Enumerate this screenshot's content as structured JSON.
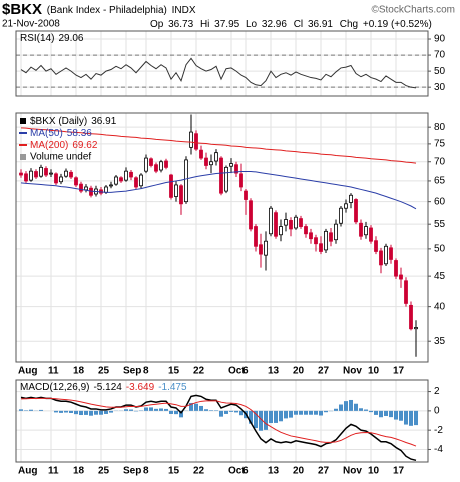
{
  "header": {
    "symbol": "$BKX",
    "name": "(Bank Index - Philadelphia)",
    "exchange": "INDX",
    "date": "21-Nov-2008",
    "copyright": "©StockCharts.com",
    "open_label": "Op",
    "high_label": "Hi",
    "low_label": "Lo",
    "close_label": "Cl",
    "change_label": "Chg",
    "change": "+0.19 (+0.52%)"
  },
  "chart_data": [
    {
      "type": "line",
      "title": "RSI(14)",
      "series": [
        {
          "color": "#333333",
          "values": [
            52,
            48,
            55,
            51,
            57,
            50,
            53,
            46,
            50,
            54,
            50,
            45,
            42,
            46,
            40,
            47,
            45,
            50,
            52,
            56,
            53,
            58,
            54,
            48,
            55,
            62,
            57,
            53,
            58,
            54,
            40,
            48,
            38,
            58,
            66,
            57,
            53,
            50,
            52,
            56,
            40,
            53,
            54,
            50,
            45,
            42,
            36,
            33,
            32,
            38,
            50,
            42,
            46,
            48,
            45,
            49,
            46,
            44,
            42,
            41,
            39,
            46,
            43,
            49,
            54,
            55,
            57,
            47,
            43,
            46,
            42,
            40,
            37,
            44,
            40,
            36,
            36,
            32,
            30,
            29.06
          ]
        }
      ],
      "ylim": [
        19,
        100
      ],
      "yticks": [
        90,
        70,
        50,
        30
      ],
      "dashed_lines": [
        70,
        30
      ],
      "grid": true
    },
    {
      "type": "candlestick",
      "log_scale": true,
      "grid": true,
      "categories": [
        "Aug",
        null,
        null,
        null,
        null,
        null,
        "11",
        null,
        null,
        null,
        null,
        "18",
        null,
        null,
        null,
        null,
        "25",
        null,
        null,
        null,
        null,
        "Sep",
        null,
        null,
        null,
        "8",
        null,
        null,
        null,
        null,
        "15",
        null,
        null,
        null,
        null,
        "22",
        null,
        null,
        null,
        null,
        null,
        null,
        "Oct",
        null,
        null,
        "6",
        null,
        null,
        null,
        null,
        "13",
        null,
        null,
        null,
        null,
        "20",
        null,
        null,
        null,
        null,
        "27",
        null,
        null,
        null,
        null,
        "Nov",
        null,
        null,
        null,
        null,
        "10",
        null,
        null,
        null,
        null,
        "17",
        null,
        null,
        null,
        null
      ],
      "series": [
        {
          "name": "$BKX (Daily)",
          "color": "#000000",
          "up_color": "#000000",
          "down_color": "#cc0033",
          "open": [
            67.0,
            66.8,
            65.2,
            67.4,
            66.2,
            68.2,
            66.8,
            66.8,
            64.8,
            66.2,
            67.2,
            65.8,
            64.2,
            62.8,
            63.2,
            61.8,
            62.8,
            62.2,
            63.8,
            64.2,
            65.8,
            65.2,
            67.2,
            65.8,
            63.8,
            67.5,
            70.8,
            69.2,
            67.8,
            70.2,
            66.5,
            61.2,
            63.8,
            60.0,
            74.0,
            78.0,
            73.2,
            71.0,
            69.2,
            70.2,
            71.0,
            62.5,
            68.8,
            69.2,
            66.8,
            62.5,
            60.2,
            54.5,
            50.8,
            48.8,
            53.0,
            57.5,
            52.8,
            54.8,
            55.8,
            54.2,
            56.2,
            54.5,
            53.2,
            52.2,
            51.0,
            49.8,
            53.2,
            51.8,
            55.2,
            58.5,
            59.8,
            60.5,
            55.2,
            52.8,
            54.2,
            51.6,
            49.6,
            47.2,
            50.2,
            47.8,
            45.2,
            44.2,
            40.2,
            36.73
          ],
          "high": [
            68.0,
            67.5,
            68.3,
            68.0,
            69.2,
            68.8,
            68.0,
            67.2,
            66.8,
            68.2,
            67.8,
            66.2,
            64.8,
            64.2,
            63.8,
            63.8,
            63.5,
            64.0,
            64.8,
            66.5,
            66.2,
            68.5,
            67.8,
            66.2,
            67.0,
            72.0,
            71.2,
            69.8,
            70.5,
            70.8,
            66.8,
            65.0,
            64.2,
            71.5,
            84.0,
            79.0,
            74.5,
            72.5,
            72.0,
            73.5,
            71.5,
            69.0,
            71.0,
            70.0,
            69.5,
            63.0,
            60.8,
            55.0,
            53.0,
            53.5,
            59.0,
            58.0,
            56.0,
            57.5,
            56.5,
            57.0,
            56.8,
            55.0,
            54.0,
            52.8,
            52.5,
            54.0,
            54.2,
            56.0,
            59.0,
            60.5,
            62.0,
            60.8,
            56.0,
            55.5,
            54.8,
            52.5,
            50.2,
            51.0,
            50.8,
            48.2,
            46.5,
            44.8,
            40.8,
            37.95
          ],
          "low": [
            65.8,
            64.5,
            64.8,
            65.5,
            65.8,
            66.0,
            66.0,
            64.0,
            64.2,
            65.8,
            65.5,
            63.5,
            62.0,
            62.2,
            61.0,
            61.2,
            61.5,
            61.8,
            63.2,
            63.8,
            64.5,
            64.8,
            65.2,
            63.0,
            63.2,
            67.0,
            68.5,
            67.0,
            67.2,
            68.0,
            60.5,
            60.0,
            57.0,
            59.5,
            72.0,
            73.0,
            70.5,
            68.0,
            67.0,
            69.0,
            61.5,
            62.0,
            67.0,
            66.0,
            62.5,
            57.0,
            53.5,
            49.5,
            46.5,
            46.0,
            52.5,
            52.0,
            51.5,
            53.5,
            52.5,
            53.8,
            54.0,
            52.2,
            51.0,
            49.5,
            49.0,
            49.2,
            50.5,
            51.0,
            54.5,
            57.5,
            58.5,
            55.0,
            51.8,
            52.0,
            51.0,
            49.0,
            45.5,
            46.8,
            47.2,
            44.5,
            43.0,
            40.0,
            36.5,
            32.96
          ],
          "close": [
            66.5,
            65.0,
            67.5,
            66.0,
            68.5,
            66.5,
            67.0,
            64.5,
            66.0,
            67.5,
            66.0,
            64.0,
            62.5,
            63.5,
            61.5,
            63.0,
            62.0,
            63.5,
            64.0,
            66.0,
            65.0,
            67.5,
            66.0,
            63.5,
            66.5,
            71.0,
            69.0,
            67.5,
            70.0,
            68.5,
            61.0,
            64.0,
            59.5,
            70.5,
            78.5,
            73.5,
            71.0,
            69.0,
            70.0,
            72.5,
            62.0,
            68.5,
            69.5,
            67.0,
            63.5,
            60.5,
            54.0,
            50.5,
            49.0,
            51.5,
            58.5,
            52.5,
            54.5,
            56.0,
            54.0,
            56.5,
            54.5,
            53.0,
            52.0,
            51.0,
            49.5,
            53.5,
            51.5,
            55.0,
            58.5,
            59.5,
            61.5,
            55.5,
            52.5,
            54.5,
            51.5,
            49.5,
            47.0,
            50.5,
            48.0,
            45.0,
            44.5,
            40.5,
            36.72,
            36.91
          ]
        },
        {
          "name": "MA(50)",
          "color": "#2b3ea8",
          "values": [
            64.5,
            64.4,
            64.3,
            64.2,
            64.1,
            64.0,
            63.9,
            63.8,
            63.6,
            63.5,
            63.3,
            63.1,
            62.9,
            62.7,
            62.5,
            62.4,
            62.3,
            62.2,
            62.2,
            62.3,
            62.4,
            62.5,
            62.7,
            62.9,
            63.1,
            63.4,
            63.7,
            64.0,
            64.3,
            64.6,
            64.8,
            65.0,
            65.2,
            65.5,
            65.8,
            66.1,
            66.3,
            66.5,
            66.7,
            66.9,
            67.0,
            67.1,
            67.2,
            67.3,
            67.4,
            67.4,
            67.4,
            67.3,
            67.1,
            66.9,
            66.7,
            66.5,
            66.3,
            66.1,
            65.9,
            65.7,
            65.5,
            65.3,
            65.1,
            64.9,
            64.7,
            64.5,
            64.3,
            64.1,
            63.9,
            63.7,
            63.5,
            63.2,
            62.9,
            62.6,
            62.3,
            62.0,
            61.6,
            61.2,
            60.8,
            60.4,
            60.0,
            59.5,
            59.0,
            58.36
          ]
        },
        {
          "name": "MA(200)",
          "color": "#e02020",
          "values": [
            79.8,
            79.7,
            79.5,
            79.4,
            79.3,
            79.2,
            79.0,
            78.9,
            78.8,
            78.6,
            78.5,
            78.4,
            78.3,
            78.1,
            78.0,
            77.9,
            77.8,
            77.6,
            77.5,
            77.4,
            77.2,
            77.1,
            77.0,
            76.9,
            76.7,
            76.6,
            76.5,
            76.3,
            76.2,
            76.1,
            76.0,
            75.8,
            75.7,
            75.6,
            75.5,
            75.3,
            75.2,
            75.1,
            74.9,
            74.8,
            74.7,
            74.6,
            74.4,
            74.3,
            74.2,
            74.0,
            73.9,
            73.8,
            73.7,
            73.5,
            73.4,
            73.3,
            73.2,
            73.0,
            72.9,
            72.8,
            72.6,
            72.5,
            72.4,
            72.3,
            72.1,
            72.0,
            71.9,
            71.7,
            71.6,
            71.5,
            71.4,
            71.2,
            71.1,
            71.0,
            70.8,
            70.7,
            70.6,
            70.5,
            70.3,
            70.2,
            70.1,
            69.9,
            69.8,
            69.62
          ]
        }
      ],
      "note": "Volume undef",
      "note_color": "#999999",
      "ylim": [
        32.3,
        84.5
      ],
      "yticks": [
        80,
        75,
        70,
        65,
        60,
        55,
        50,
        45,
        40,
        35
      ]
    },
    {
      "type": "combo",
      "title": "MACD(12,26,9)",
      "grid": true,
      "categories": [
        "Aug",
        null,
        null,
        null,
        null,
        null,
        "11",
        null,
        null,
        null,
        null,
        "18",
        null,
        null,
        null,
        null,
        "25",
        null,
        null,
        null,
        null,
        "Sep",
        null,
        null,
        null,
        "8",
        null,
        null,
        null,
        null,
        "15",
        null,
        null,
        null,
        null,
        "22",
        null,
        null,
        null,
        null,
        null,
        null,
        "Oct",
        null,
        null,
        "6",
        null,
        null,
        null,
        null,
        "13",
        null,
        null,
        null,
        null,
        "20",
        null,
        null,
        null,
        null,
        "27",
        null,
        null,
        null,
        null,
        "Nov",
        null,
        null,
        null,
        null,
        "10",
        null,
        null,
        null,
        null,
        "17",
        null,
        null,
        null,
        null
      ],
      "series": [
        {
          "type": "line",
          "color": "#000000",
          "values": [
            1.4,
            1.3,
            1.4,
            1.3,
            1.4,
            1.3,
            1.3,
            1.1,
            1.0,
            1.0,
            0.9,
            0.7,
            0.5,
            0.4,
            0.2,
            0.2,
            0.1,
            0.1,
            0.2,
            0.4,
            0.4,
            0.6,
            0.6,
            0.4,
            0.5,
            0.9,
            1.0,
            0.9,
            1.0,
            1.0,
            0.4,
            0.3,
            -0.2,
            0.5,
            1.5,
            1.6,
            1.5,
            1.2,
            1.1,
            1.1,
            0.3,
            0.5,
            0.7,
            0.6,
            0.2,
            -0.3,
            -1.2,
            -2.1,
            -2.9,
            -3.3,
            -2.9,
            -3.2,
            -3.3,
            -3.2,
            -3.3,
            -3.1,
            -3.2,
            -3.3,
            -3.4,
            -3.5,
            -3.7,
            -3.4,
            -3.3,
            -3.0,
            -2.4,
            -1.8,
            -1.4,
            -1.6,
            -2.0,
            -2.1,
            -2.4,
            -2.8,
            -3.2,
            -3.2,
            -3.4,
            -3.8,
            -4.1,
            -4.7,
            -5.0,
            -5.124
          ]
        },
        {
          "type": "line",
          "color": "#e02020",
          "values": [
            1.24,
            1.25,
            1.28,
            1.28,
            1.3,
            1.3,
            1.3,
            1.26,
            1.21,
            1.17,
            1.12,
            1.04,
            0.93,
            0.82,
            0.7,
            0.6,
            0.5,
            0.42,
            0.38,
            0.38,
            0.38,
            0.43,
            0.46,
            0.45,
            0.46,
            0.55,
            0.64,
            0.69,
            0.75,
            0.8,
            0.72,
            0.64,
            0.47,
            0.48,
            0.68,
            0.86,
            0.99,
            1.03,
            1.04,
            1.05,
            0.9,
            0.82,
            0.8,
            0.76,
            0.65,
            0.46,
            0.13,
            -0.32,
            -0.84,
            -1.33,
            -1.64,
            -1.95,
            -2.22,
            -2.42,
            -2.6,
            -2.7,
            -2.8,
            -2.9,
            -3.0,
            -3.1,
            -3.22,
            -3.26,
            -3.27,
            -3.22,
            -3.06,
            -2.81,
            -2.53,
            -2.34,
            -2.27,
            -2.24,
            -2.27,
            -2.38,
            -2.54,
            -2.67,
            -2.75,
            -2.9,
            -3.08,
            -3.28,
            -3.45,
            -3.649
          ]
        },
        {
          "type": "bar",
          "color": "#4a8fc8",
          "values": [
            0.16,
            0.05,
            0.12,
            0.02,
            0.1,
            0.0,
            0.0,
            -0.16,
            -0.21,
            -0.17,
            -0.22,
            -0.34,
            -0.43,
            -0.42,
            -0.5,
            -0.4,
            -0.4,
            -0.32,
            -0.18,
            0.02,
            0.02,
            0.17,
            0.14,
            -0.05,
            0.04,
            0.35,
            0.36,
            0.21,
            0.25,
            0.2,
            -0.32,
            -0.34,
            -0.67,
            0.02,
            0.82,
            0.74,
            0.51,
            0.17,
            0.06,
            0.05,
            -0.6,
            -0.32,
            -0.1,
            -0.16,
            -0.45,
            -0.76,
            -1.33,
            -1.78,
            -2.06,
            -1.97,
            -1.26,
            -1.25,
            -1.08,
            -0.78,
            -0.7,
            -0.4,
            -0.4,
            -0.4,
            -0.4,
            -0.4,
            -0.48,
            -0.14,
            -0.03,
            0.22,
            0.66,
            1.01,
            1.13,
            0.74,
            0.27,
            0.14,
            -0.13,
            -0.42,
            -0.66,
            -0.53,
            -0.65,
            -0.9,
            -1.02,
            -1.42,
            -1.55,
            -1.475
          ]
        }
      ],
      "ylim": [
        -5.3,
        3.2
      ],
      "yticks": [
        2,
        0,
        -2,
        -4
      ]
    }
  ]
}
